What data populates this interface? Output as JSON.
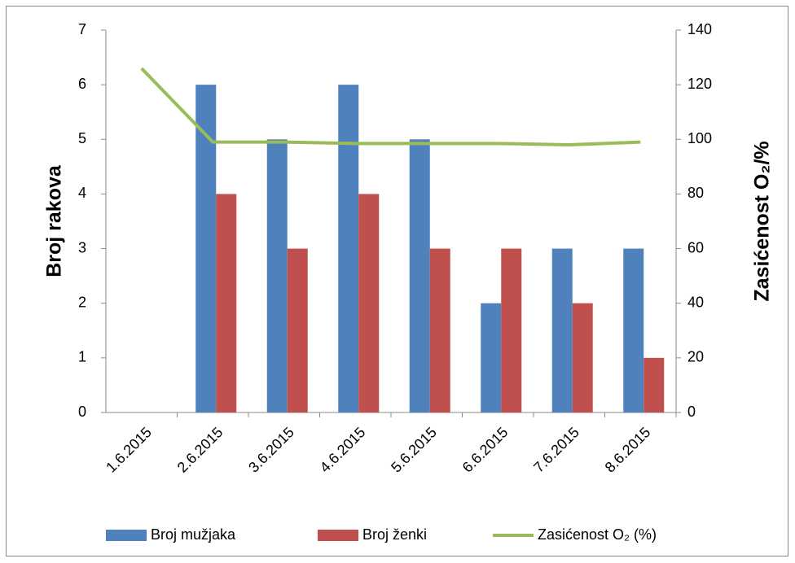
{
  "chart_data": {
    "type": "bar_line",
    "categories": [
      "1.6.2015",
      "2.6.2015",
      "3.6.2015",
      "4.6.2015",
      "5.6.2015",
      "6.6.2015",
      "7.6.2015",
      "8.6.2015"
    ],
    "series": [
      {
        "name": "Broj mužjaka",
        "color": "#4f81bd",
        "type": "bar",
        "values": [
          0,
          6,
          5,
          6,
          5,
          2,
          3,
          3
        ]
      },
      {
        "name": "Broj ženki",
        "color": "#c0504d",
        "type": "bar",
        "values": [
          0,
          4,
          3,
          4,
          3,
          3,
          2,
          1
        ]
      },
      {
        "name": "Zasićenost O₂ (%)",
        "color": "#9bbb59",
        "type": "line",
        "axis": "y2",
        "values": [
          126,
          99,
          99,
          98.5,
          98.5,
          98.5,
          98,
          99
        ]
      }
    ],
    "ylabel": "Broj rakova",
    "y2label": "Zasićenost O₂/%",
    "ylim": [
      0,
      7
    ],
    "yticks": [
      0,
      1,
      2,
      3,
      4,
      5,
      6,
      7
    ],
    "y2lim": [
      0,
      140
    ],
    "y2ticks": [
      0,
      20,
      40,
      60,
      80,
      100,
      120,
      140
    ],
    "legend": "bottom",
    "grid": false
  }
}
